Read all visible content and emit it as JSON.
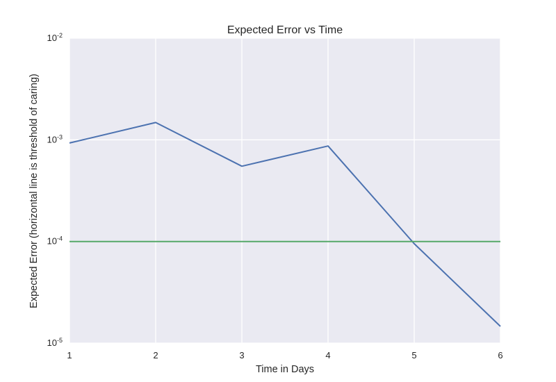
{
  "chart_data": {
    "type": "line",
    "title": "Expected Error vs Time",
    "xlabel": "Time in Days",
    "ylabel": "Expected Error (horizontal line is threshold of caring)",
    "x": [
      1,
      2,
      3,
      4,
      5,
      6
    ],
    "xlim": [
      1,
      6
    ],
    "ylim": [
      1e-05,
      0.01
    ],
    "yscale": "log",
    "grid": true,
    "xticks": [
      {
        "value": 1,
        "label": "1"
      },
      {
        "value": 2,
        "label": "2"
      },
      {
        "value": 3,
        "label": "3"
      },
      {
        "value": 4,
        "label": "4"
      },
      {
        "value": 5,
        "label": "5"
      },
      {
        "value": 6,
        "label": "6"
      }
    ],
    "yticks": [
      {
        "value": 0.01,
        "base": "10",
        "exponent": "-2"
      },
      {
        "value": 0.001,
        "base": "10",
        "exponent": "-3"
      },
      {
        "value": 0.0001,
        "base": "10",
        "exponent": "-4"
      },
      {
        "value": 1e-05,
        "base": "10",
        "exponent": "-5"
      }
    ],
    "series": [
      {
        "values": [
          0.00093,
          0.00148,
          0.00055,
          0.00087,
          9.5e-05,
          1.46e-05
        ],
        "color": "#4c72b0"
      },
      {
        "values": [
          0.0001,
          0.0001,
          0.0001,
          0.0001,
          0.0001,
          0.0001
        ],
        "color": "#55a868"
      }
    ],
    "colors": {
      "plot_background": "#eaeaf2",
      "grid": "#ffffff",
      "text": "#262626"
    }
  }
}
